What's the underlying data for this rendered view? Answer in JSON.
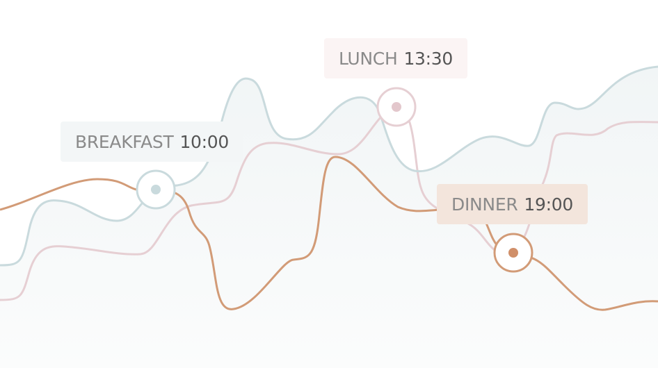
{
  "colors": {
    "background": "#ffffff",
    "area_fill_top": "#f1f5f6",
    "area_fill_bottom": "#fbfcfc",
    "breakfast_line": "#c9dadd",
    "lunch_line": "#e6cfd3",
    "dinner_line": "#d29b77"
  },
  "markers": [
    {
      "id": "breakfast",
      "name": "BREAKFAST",
      "time": "10:00",
      "color": "#c9dadd",
      "dot_color": "#c9dadd",
      "label_bg": "#f3f6f7"
    },
    {
      "id": "lunch",
      "name": "LUNCH",
      "time": "13:30",
      "color": "#e6cfd3",
      "dot_color": "#e3c7cc",
      "label_bg": "#fbf4f4"
    },
    {
      "id": "dinner",
      "name": "DINNER",
      "time": "19:00",
      "color": "#d29b77",
      "dot_color": "#d08f69",
      "label_bg": "#f3e5dc"
    }
  ]
}
